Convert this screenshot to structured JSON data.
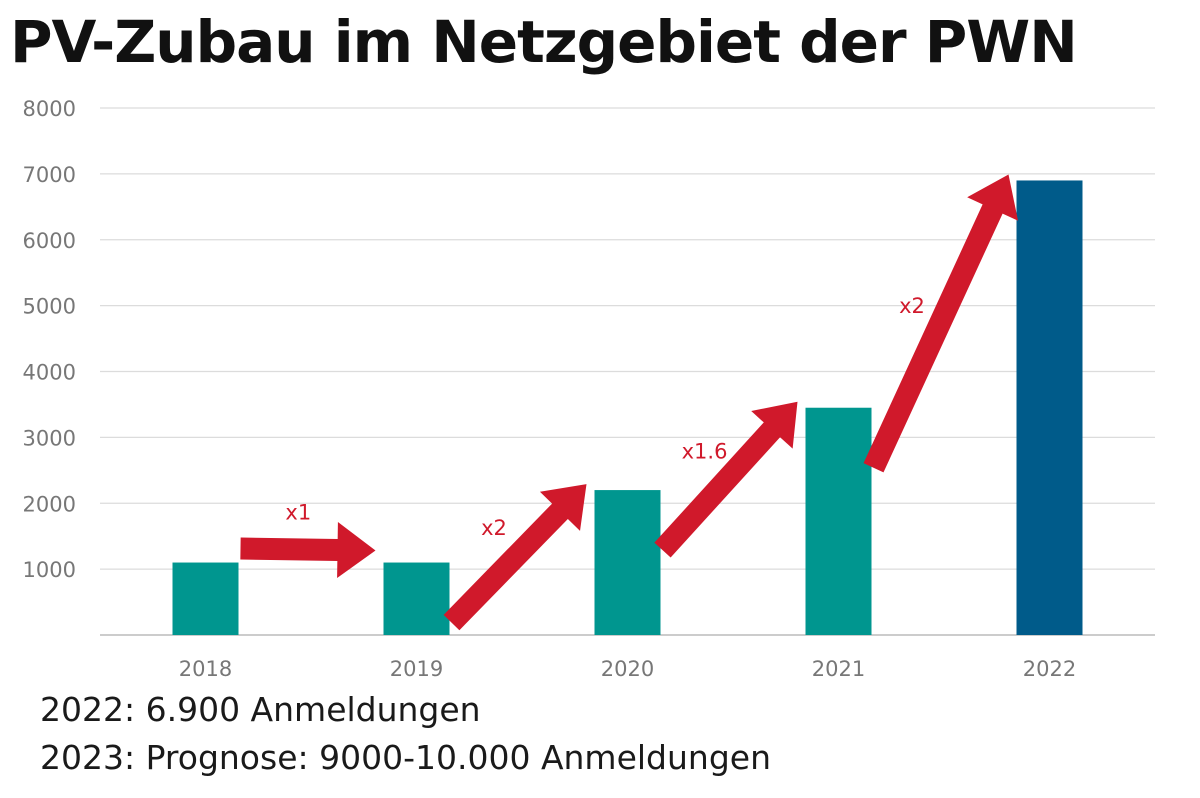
{
  "chart_data": {
    "type": "bar",
    "title": "PV-Zubau im Netzgebiet der PWN",
    "xlabel": "",
    "ylabel": "",
    "categories": [
      "2018",
      "2019",
      "2020",
      "2021",
      "2022"
    ],
    "values": [
      1100,
      1100,
      2200,
      3450,
      6900
    ],
    "ylim": [
      0,
      8000
    ],
    "yticks": [
      "1000",
      "2000",
      "3000",
      "4000",
      "5000",
      "6000",
      "7000",
      "8000"
    ],
    "grid": true,
    "legend": "none",
    "colors": {
      "bar": "#00968f",
      "highlight_bar": "#005b8a",
      "arrow": "#d0192b",
      "grid": "#dcdcdc",
      "axis": "#bbbbbb"
    },
    "highlight_category": "2022",
    "annotations": [
      {
        "from": "2018",
        "to": "2019",
        "label": "x1"
      },
      {
        "from": "2019",
        "to": "2020",
        "label": "x2"
      },
      {
        "from": "2020",
        "to": "2021",
        "label": "x1.6"
      },
      {
        "from": "2021",
        "to": "2022",
        "label": "x2"
      }
    ]
  },
  "footnotes": [
    "2022: 6.900 Anmeldungen",
    "2023: Prognose: 9000-10.000 Anmeldungen"
  ]
}
